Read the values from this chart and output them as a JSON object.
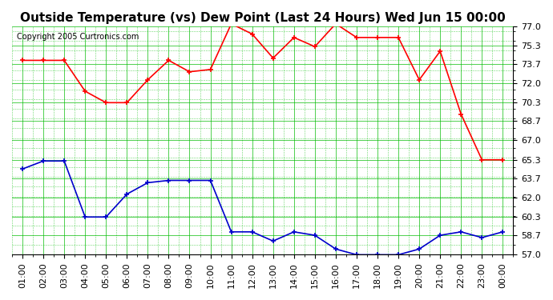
{
  "title": "Outside Temperature (vs) Dew Point (Last 24 Hours) Wed Jun 15 00:00",
  "copyright": "Copyright 2005 Curtronics.com",
  "x_labels": [
    "01:00",
    "02:00",
    "03:00",
    "04:00",
    "05:00",
    "06:00",
    "07:00",
    "08:00",
    "09:00",
    "10:00",
    "11:00",
    "12:00",
    "13:00",
    "14:00",
    "15:00",
    "16:00",
    "17:00",
    "18:00",
    "19:00",
    "20:00",
    "21:00",
    "22:00",
    "23:00",
    "00:00"
  ],
  "red_data": [
    74.0,
    74.0,
    74.0,
    71.3,
    70.3,
    70.3,
    72.3,
    74.0,
    73.0,
    73.2,
    77.2,
    76.3,
    74.2,
    76.0,
    75.2,
    77.2,
    76.0,
    76.0,
    76.0,
    72.3,
    74.8,
    69.3,
    65.3,
    65.3
  ],
  "blue_data": [
    64.5,
    65.2,
    65.2,
    60.3,
    60.3,
    62.3,
    63.3,
    63.5,
    63.5,
    63.5,
    59.0,
    59.0,
    58.2,
    59.0,
    58.7,
    57.5,
    57.0,
    57.0,
    57.0,
    57.5,
    58.7,
    59.0,
    58.5,
    59.0
  ],
  "ylim": [
    57.0,
    77.0
  ],
  "yticks": [
    57.0,
    58.7,
    60.3,
    62.0,
    63.7,
    65.3,
    67.0,
    68.7,
    70.3,
    72.0,
    73.7,
    75.3,
    77.0
  ],
  "bg_color": "#ffffff",
  "plot_bg": "#ffffff",
  "grid_color_major": "#00bb00",
  "grid_color_minor": "#00bb00",
  "red_color": "#ff0000",
  "blue_color": "#0000cc",
  "title_fontsize": 11,
  "tick_fontsize": 8
}
